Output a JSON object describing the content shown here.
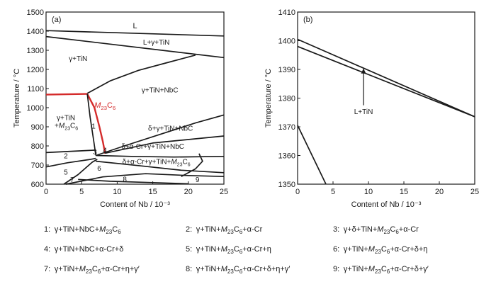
{
  "chart_data": [
    {
      "type": "line",
      "panel_label": "(a)",
      "xlabel": "Content of Nb / 10⁻³",
      "ylabel": "Temperature / °C",
      "xlim": [
        0,
        25
      ],
      "ylim": [
        600,
        1500
      ],
      "xticks": [
        "0",
        "5",
        "10",
        "15",
        "20",
        "25"
      ],
      "yticks": [
        "600",
        "700",
        "800",
        "900",
        "1000",
        "1100",
        "1200",
        "1300",
        "1400",
        "1500"
      ],
      "series": [
        {
          "x": [
            0,
            25
          ],
          "y": [
            1403,
            1375
          ]
        },
        {
          "x": [
            0,
            25
          ],
          "y": [
            1372,
            1262
          ]
        },
        {
          "x": [
            5.8,
            9,
            13,
            17,
            21
          ],
          "y": [
            1075,
            1140,
            1195,
            1235,
            1275
          ]
        },
        {
          "x": [
            0,
            5.8
          ],
          "y": [
            1068,
            1072
          ]
        },
        {
          "x": [
            5.8,
            6.8,
            7.5,
            8.0,
            8.3
          ],
          "y": [
            1072,
            1000,
            900,
            820,
            760
          ]
        },
        {
          "x": [
            5.8,
            6.2,
            6.6,
            7.0
          ],
          "y": [
            1072,
            950,
            850,
            750
          ]
        },
        {
          "x": [
            7.0,
            11,
            16,
            21,
            25
          ],
          "y": [
            750,
            800,
            860,
            920,
            962
          ]
        },
        {
          "x": [
            8.3,
            15,
            25
          ],
          "y": [
            762,
            815,
            852
          ]
        },
        {
          "x": [
            0,
            7
          ],
          "y": [
            765,
            778
          ]
        },
        {
          "x": [
            7,
            12,
            18,
            25
          ],
          "y": [
            750,
            745,
            742,
            745
          ]
        },
        {
          "x": [
            0,
            3,
            6,
            7
          ],
          "y": [
            690,
            712,
            728,
            735
          ]
        },
        {
          "x": [
            7,
            13,
            19,
            25
          ],
          "y": [
            720,
            697,
            673,
            660
          ]
        },
        {
          "x": [
            2.5,
            4.5,
            6.5,
            7.2
          ],
          "y": [
            600,
            650,
            715,
            730
          ]
        },
        {
          "x": [
            2.8,
            8,
            14,
            20,
            25
          ],
          "y": [
            600,
            638,
            655,
            645,
            640
          ]
        },
        {
          "x": [
            4.5,
            9,
            15,
            20
          ],
          "y": [
            625,
            615,
            608,
            602
          ]
        },
        {
          "x": [
            19,
            21,
            22,
            21.5
          ],
          "y": [
            640,
            680,
            720,
            760
          ]
        }
      ],
      "annotations": {
        "liquid": "L",
        "l_gamma_tin": "L+γ+TiN",
        "gamma_tin": "γ+TiN",
        "gamma_tin_nbc": "γ+TiN+NbC",
        "m23c6": "M23C6",
        "gamma_tin_m23c6_a": "γ+TiN",
        "gamma_tin_m23c6_b": "+M23C6",
        "delta_gamma_tin_nbc": "δ+γ+TiN+NbC",
        "delta_acr_gamma_tin_nbc": "δ+α-Cr+γ+TiN+NbC",
        "delta_acr_gamma_tin_m23c6": "δ+α-Cr+γ+TiN+M23C6",
        "region_1": "1",
        "region_2": "2",
        "region_3": "3",
        "region_4": "4",
        "region_5": "5",
        "region_6": "6",
        "region_7": "7",
        "region_8": "8",
        "region_9": "9"
      },
      "highlight_color": "#d42a2a"
    },
    {
      "type": "line",
      "panel_label": "(b)",
      "xlabel": "Content of Nb / 10⁻³",
      "ylabel": "Temperature / °C",
      "xlim": [
        0,
        25
      ],
      "ylim": [
        1350,
        1410
      ],
      "xticks": [
        "0",
        "5",
        "10",
        "15",
        "20",
        "25"
      ],
      "yticks": [
        "1350",
        "1360",
        "1370",
        "1380",
        "1390",
        "1400",
        "1410"
      ],
      "series": [
        {
          "x": [
            0,
            25
          ],
          "y": [
            1400.5,
            1373.5
          ]
        },
        {
          "x": [
            0,
            25
          ],
          "y": [
            1398,
            1373.5
          ]
        },
        {
          "x": [
            0,
            4
          ],
          "y": [
            1370.5,
            1350
          ]
        }
      ],
      "annotations": {
        "l_tin": "L+TiN"
      }
    }
  ],
  "legend": [
    {
      "num": "1:",
      "text": "γ+TiN+NbC+M23C6"
    },
    {
      "num": "2:",
      "text": "γ+TiN+M23C6+α-Cr"
    },
    {
      "num": "3:",
      "text": "γ+δ+TiN+M23C6+α-Cr"
    },
    {
      "num": "4:",
      "text": "γ+TiN+NbC+α-Cr+δ"
    },
    {
      "num": "5:",
      "text": "γ+TiN+M23C6+α-Cr+η"
    },
    {
      "num": "6:",
      "text": "γ+TiN+M23C6+α-Cr+δ+η"
    },
    {
      "num": "7:",
      "text": "γ+TiN+M23C6+α-Cr+η+γ′"
    },
    {
      "num": "8:",
      "text": "γ+TiN+M23C6+α-Cr+δ+η+γ′"
    },
    {
      "num": "9:",
      "text": "γ+TiN+M23C6+α-Cr+δ+γ′"
    }
  ]
}
